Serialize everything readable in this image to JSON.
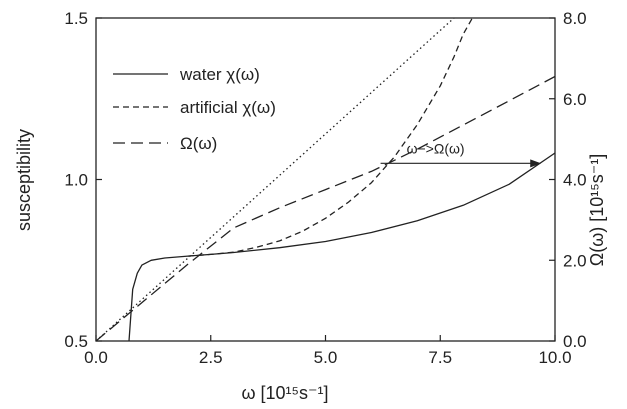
{
  "chart_data": {
    "type": "line",
    "xlabel": "ω [10¹⁵s⁻¹]",
    "ylabel": "susceptibility",
    "y2label": "Ω(ω) [10¹⁵s⁻¹]",
    "xlim": [
      0,
      10
    ],
    "ylim": [
      0.5,
      1.5
    ],
    "y2lim": [
      0,
      8
    ],
    "x_ticks": [
      "0.0",
      "2.5",
      "5.0",
      "7.5",
      "10.0"
    ],
    "y_ticks": [
      "0.5",
      "1.0",
      "1.5"
    ],
    "y2_ticks": [
      "0.0",
      "2.0",
      "4.0",
      "6.0",
      "8.0"
    ],
    "grid": false,
    "legend_position": "top-left",
    "series": [
      {
        "name": "water χ(ω)",
        "axis": "left",
        "style": "solid",
        "points": [
          [
            0.72,
            0.5
          ],
          [
            0.8,
            0.66
          ],
          [
            0.9,
            0.71
          ],
          [
            1.0,
            0.735
          ],
          [
            1.2,
            0.75
          ],
          [
            1.5,
            0.757
          ],
          [
            2.0,
            0.763
          ],
          [
            2.5,
            0.768
          ],
          [
            3.0,
            0.774
          ],
          [
            4.0,
            0.789
          ],
          [
            5.0,
            0.808
          ],
          [
            6.0,
            0.836
          ],
          [
            7.0,
            0.872
          ],
          [
            8.0,
            0.92
          ],
          [
            9.0,
            0.985
          ],
          [
            10.0,
            1.082
          ]
        ]
      },
      {
        "name": "artificial χ(ω)",
        "axis": "left",
        "style": "short-dash",
        "points": [
          [
            2.0,
            0.763
          ],
          [
            2.5,
            0.768
          ],
          [
            3.0,
            0.775
          ],
          [
            3.5,
            0.79
          ],
          [
            4.0,
            0.81
          ],
          [
            4.5,
            0.84
          ],
          [
            5.0,
            0.88
          ],
          [
            5.5,
            0.93
          ],
          [
            6.0,
            0.99
          ],
          [
            6.5,
            1.07
          ],
          [
            7.0,
            1.17
          ],
          [
            7.5,
            1.29
          ],
          [
            7.8,
            1.38
          ],
          [
            8.0,
            1.45
          ],
          [
            8.2,
            1.5
          ]
        ]
      },
      {
        "name": "Ω(ω)",
        "axis": "right",
        "style": "long-dash",
        "points": [
          [
            0.0,
            0.0
          ],
          [
            1.0,
            0.95
          ],
          [
            2.0,
            1.9
          ],
          [
            3.0,
            2.8
          ],
          [
            4.0,
            3.3
          ],
          [
            5.0,
            3.75
          ],
          [
            6.0,
            4.2
          ],
          [
            7.0,
            4.75
          ],
          [
            8.0,
            5.35
          ],
          [
            9.0,
            5.95
          ],
          [
            10.0,
            6.55
          ]
        ]
      },
      {
        "axis": "right",
        "style": "dotted",
        "points": [
          [
            0.0,
            0.0
          ],
          [
            7.8,
            8.0
          ]
        ]
      }
    ],
    "annotations": [
      {
        "text": "ω−>Ω(ω)",
        "arrow_from": [
          6.2,
          4.4
        ],
        "arrow_to": [
          9.7,
          4.4
        ],
        "axis": "right"
      }
    ]
  }
}
